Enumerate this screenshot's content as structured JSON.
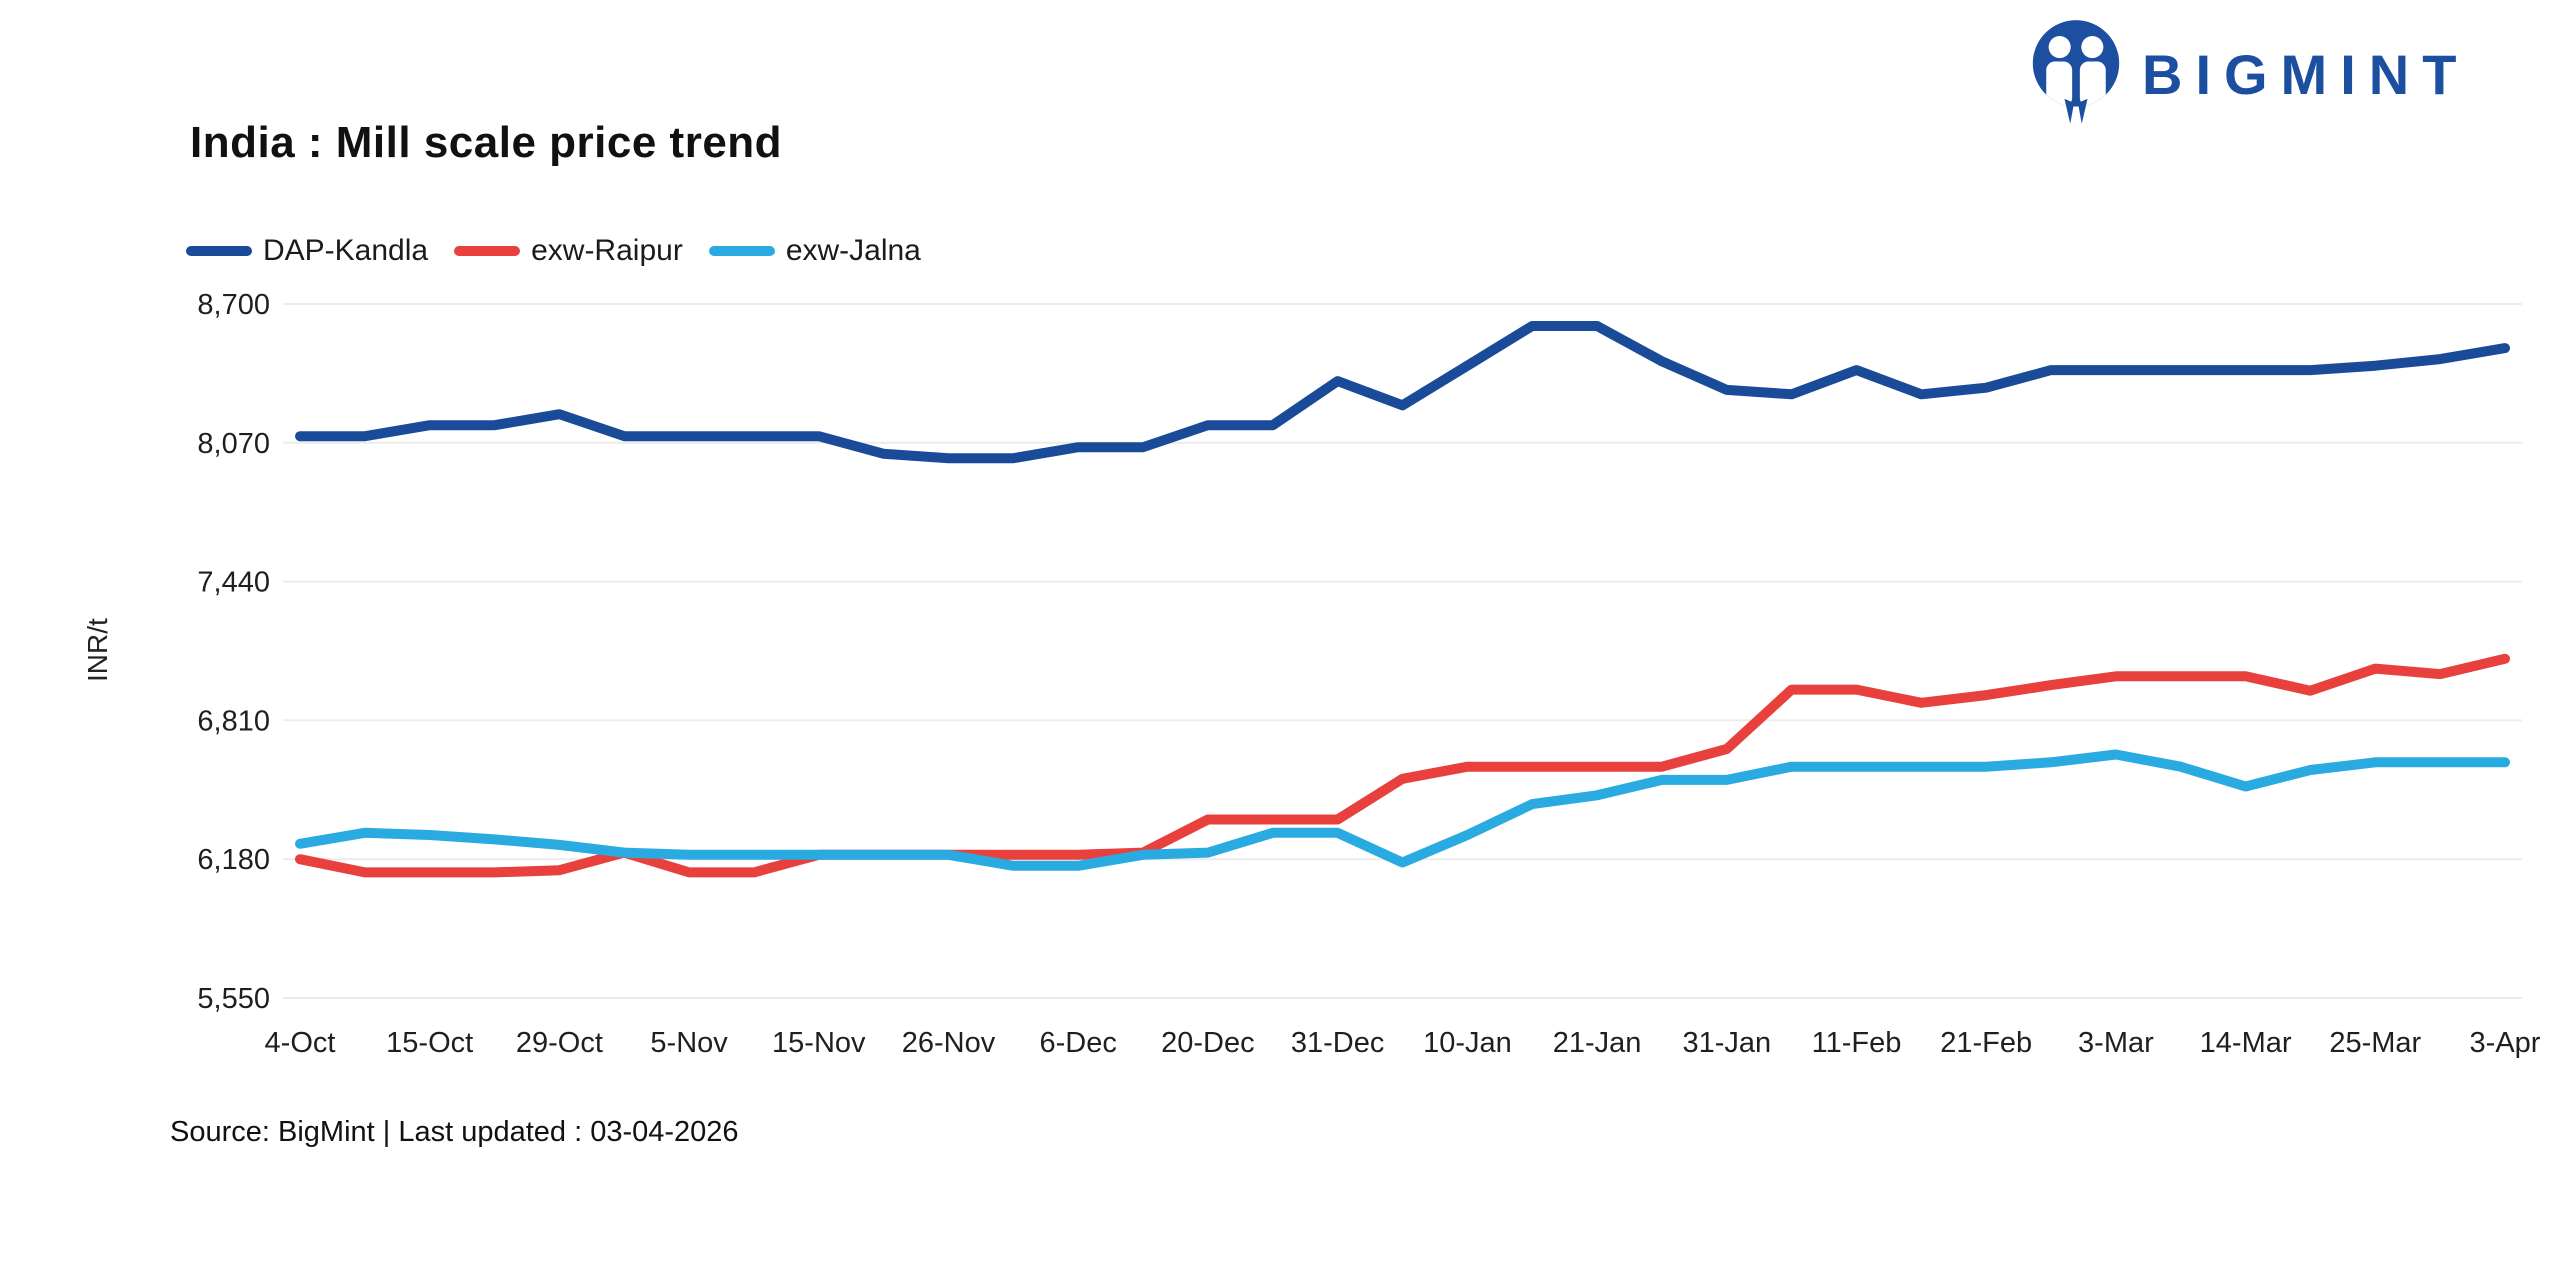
{
  "logo": {
    "text": "BIGMINT"
  },
  "title": "India : Mill scale price trend",
  "source_line": "Source: BigMint | Last updated : 03-04-2026",
  "chart_data": {
    "type": "line",
    "title": "India : Mill scale price trend",
    "xlabel": "",
    "ylabel": "INR/t",
    "grid": "horizontal",
    "legend_position": "top-left",
    "ylim": [
      5550,
      8700
    ],
    "y_ticks": [
      5550,
      6180,
      6810,
      7440,
      8070,
      8700
    ],
    "y_tick_labels": [
      "5,550",
      "6,180",
      "6,810",
      "7,440",
      "8,070",
      "8,700"
    ],
    "x_labels": [
      "4-Oct",
      "15-Oct",
      "29-Oct",
      "5-Nov",
      "15-Nov",
      "26-Nov",
      "6-Dec",
      "20-Dec",
      "31-Dec",
      "10-Jan",
      "21-Jan",
      "31-Jan",
      "11-Feb",
      "21-Feb",
      "3-Mar",
      "14-Mar",
      "25-Mar",
      "3-Apr"
    ],
    "points_per_label_interval": 2,
    "series": [
      {
        "name": "DAP-Kandla",
        "color": "#1A4B99",
        "values": [
          8100,
          8100,
          8150,
          8150,
          8200,
          8100,
          8100,
          8100,
          8100,
          8020,
          8000,
          8000,
          8050,
          8050,
          8150,
          8150,
          8350,
          8240,
          8420,
          8600,
          8600,
          8440,
          8310,
          8290,
          8400,
          8290,
          8320,
          8400,
          8400,
          8400,
          8400,
          8400,
          8420,
          8450,
          8500
        ]
      },
      {
        "name": "exw-Raipur",
        "color": "#E8403C",
        "values": [
          6180,
          6120,
          6120,
          6120,
          6130,
          6210,
          6120,
          6120,
          6200,
          6200,
          6200,
          6200,
          6200,
          6210,
          6360,
          6360,
          6360,
          6545,
          6600,
          6600,
          6600,
          6600,
          6680,
          6950,
          6950,
          6890,
          6925,
          6970,
          7010,
          7010,
          7010,
          6945,
          7045,
          7020,
          7090
        ]
      },
      {
        "name": "exw-Jalna",
        "color": "#29ABE2",
        "values": [
          6250,
          6300,
          6290,
          6270,
          6245,
          6210,
          6200,
          6200,
          6200,
          6200,
          6200,
          6150,
          6150,
          6200,
          6210,
          6300,
          6300,
          6165,
          6290,
          6430,
          6470,
          6540,
          6540,
          6600,
          6600,
          6600,
          6600,
          6620,
          6655,
          6600,
          6510,
          6585,
          6620,
          6620,
          6620
        ]
      }
    ]
  }
}
